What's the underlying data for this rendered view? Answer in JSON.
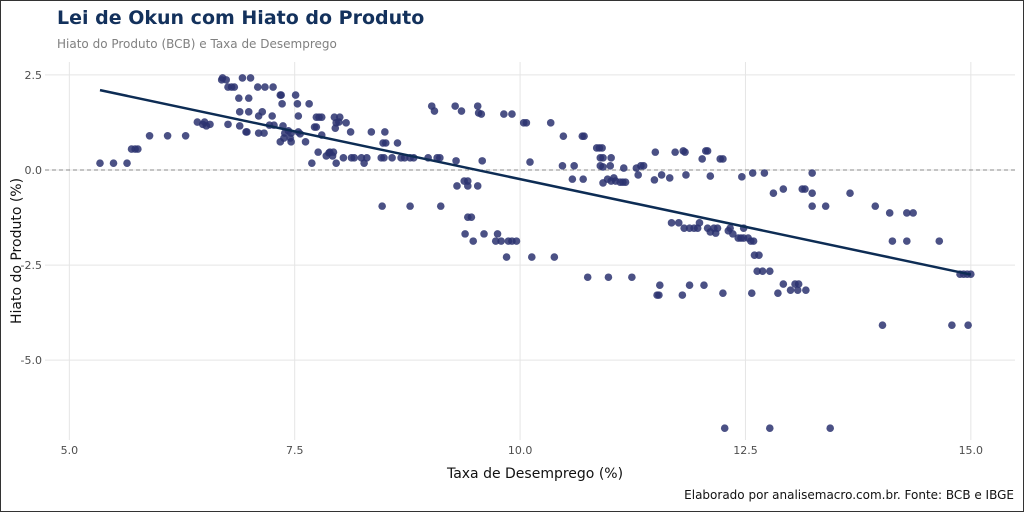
{
  "title": "Lei de Okun com Hiato do Produto",
  "subtitle": "Hiato do Produto (BCB) e Taxa de Desemprego",
  "caption": "Elaborado por analisemacro.com.br. Fonte: BCB e IBGE",
  "colors": {
    "title": "#13315c",
    "points": "#2b3270",
    "trend": "#0d2c54",
    "reference_line": "#888888"
  },
  "chart_data": {
    "type": "scatter",
    "xlabel": "Taxa de Desemprego (%)",
    "ylabel": "Hiato do Produto (%)",
    "xlim": [
      4.73,
      15.49
    ],
    "ylim": [
      -7.1,
      2.84
    ],
    "xticks": [
      {
        "value": 5.0,
        "label": "5.0"
      },
      {
        "value": 7.5,
        "label": "7.5"
      },
      {
        "value": 10.0,
        "label": "10.0"
      },
      {
        "value": 12.5,
        "label": "12.5"
      },
      {
        "value": 15.0,
        "label": "15.0"
      }
    ],
    "yticks": [
      {
        "value": 2.5,
        "label": "2.5"
      },
      {
        "value": 0.0,
        "label": "0.0"
      },
      {
        "value": -2.5,
        "label": "-2.5"
      },
      {
        "value": -5.0,
        "label": "-5.0"
      }
    ],
    "grid": true,
    "reference_hline": 0,
    "trend_line": {
      "x": [
        5.34,
        15.0
      ],
      "y": [
        2.1,
        -2.75
      ]
    },
    "points": [
      [
        5.34,
        0.18
      ],
      [
        5.49,
        0.18
      ],
      [
        5.64,
        0.18
      ],
      [
        5.69,
        0.55
      ],
      [
        5.73,
        0.55
      ],
      [
        5.76,
        0.55
      ],
      [
        5.89,
        0.9
      ],
      [
        6.09,
        0.9
      ],
      [
        6.29,
        0.9
      ],
      [
        6.42,
        1.26
      ],
      [
        6.48,
        1.2
      ],
      [
        6.5,
        1.26
      ],
      [
        6.52,
        1.16
      ],
      [
        6.56,
        1.2
      ],
      [
        6.69,
        2.37
      ],
      [
        6.7,
        2.42
      ],
      [
        6.74,
        2.37
      ],
      [
        6.76,
        2.18
      ],
      [
        6.8,
        2.18
      ],
      [
        6.83,
        2.18
      ],
      [
        6.76,
        1.2
      ],
      [
        6.88,
        1.89
      ],
      [
        6.89,
        1.53
      ],
      [
        6.89,
        1.16
      ],
      [
        6.92,
        2.42
      ],
      [
        7.01,
        2.42
      ],
      [
        6.96,
        1.0
      ],
      [
        6.97,
        1.0
      ],
      [
        6.99,
        1.89
      ],
      [
        6.99,
        1.53
      ],
      [
        7.1,
        0.97
      ],
      [
        7.16,
        0.97
      ],
      [
        7.09,
        2.18
      ],
      [
        7.17,
        2.18
      ],
      [
        7.26,
        2.18
      ],
      [
        7.1,
        1.42
      ],
      [
        7.14,
        1.53
      ],
      [
        7.22,
        1.18
      ],
      [
        7.27,
        1.18
      ],
      [
        7.25,
        1.42
      ],
      [
        7.34,
        1.97
      ],
      [
        7.35,
        1.97
      ],
      [
        7.36,
        1.74
      ],
      [
        7.34,
        0.74
      ],
      [
        7.37,
        1.16
      ],
      [
        7.39,
        0.97
      ],
      [
        7.43,
        1.03
      ],
      [
        7.46,
        0.97
      ],
      [
        7.38,
        0.84
      ],
      [
        7.45,
        0.84
      ],
      [
        7.46,
        0.74
      ],
      [
        7.51,
        1.97
      ],
      [
        7.53,
        1.74
      ],
      [
        7.54,
        1.0
      ],
      [
        7.56,
        0.95
      ],
      [
        7.54,
        1.42
      ],
      [
        7.62,
        0.74
      ],
      [
        7.66,
        1.74
      ],
      [
        7.69,
        0.18
      ],
      [
        7.72,
        1.13
      ],
      [
        7.74,
        1.13
      ],
      [
        7.74,
        1.39
      ],
      [
        7.77,
        1.39
      ],
      [
        7.8,
        1.39
      ],
      [
        7.76,
        0.47
      ],
      [
        7.8,
        0.92
      ],
      [
        7.85,
        0.37
      ],
      [
        7.88,
        0.45
      ],
      [
        7.92,
        0.37
      ],
      [
        7.94,
        1.39
      ],
      [
        7.96,
        1.24
      ],
      [
        8.0,
        1.39
      ],
      [
        7.95,
        1.1
      ],
      [
        7.99,
        1.26
      ],
      [
        7.96,
        0.18
      ],
      [
        7.89,
        0.47
      ],
      [
        7.93,
        0.47
      ],
      [
        8.04,
        0.32
      ],
      [
        8.07,
        1.24
      ],
      [
        8.12,
        1.0
      ],
      [
        8.13,
        0.32
      ],
      [
        8.16,
        0.32
      ],
      [
        8.24,
        0.32
      ],
      [
        8.27,
        0.18
      ],
      [
        8.3,
        0.32
      ],
      [
        8.35,
        1.0
      ],
      [
        8.47,
        -0.95
      ],
      [
        8.46,
        0.32
      ],
      [
        8.49,
        0.32
      ],
      [
        8.5,
        1.0
      ],
      [
        8.48,
        0.71
      ],
      [
        8.51,
        0.71
      ],
      [
        8.58,
        0.32
      ],
      [
        8.64,
        0.71
      ],
      [
        8.68,
        0.32
      ],
      [
        8.72,
        0.32
      ],
      [
        8.78,
        0.32
      ],
      [
        8.82,
        0.32
      ],
      [
        8.78,
        -0.95
      ],
      [
        8.98,
        0.32
      ],
      [
        9.02,
        1.68
      ],
      [
        9.05,
        1.55
      ],
      [
        9.08,
        0.32
      ],
      [
        9.11,
        0.32
      ],
      [
        9.12,
        -0.95
      ],
      [
        9.28,
        1.68
      ],
      [
        9.29,
        0.24
      ],
      [
        9.3,
        -0.42
      ],
      [
        9.35,
        1.55
      ],
      [
        9.38,
        -0.29
      ],
      [
        9.42,
        -0.29
      ],
      [
        9.39,
        -1.68
      ],
      [
        9.42,
        -0.42
      ],
      [
        9.42,
        -1.24
      ],
      [
        9.46,
        -1.24
      ],
      [
        9.48,
        -1.87
      ],
      [
        9.53,
        -0.42
      ],
      [
        9.53,
        1.68
      ],
      [
        9.54,
        1.5
      ],
      [
        9.58,
        0.24
      ],
      [
        9.57,
        1.47
      ],
      [
        9.6,
        -1.68
      ],
      [
        9.75,
        -1.68
      ],
      [
        9.73,
        -1.87
      ],
      [
        9.79,
        -1.87
      ],
      [
        9.82,
        1.47
      ],
      [
        9.85,
        -2.29
      ],
      [
        9.87,
        -1.87
      ],
      [
        9.91,
        -1.87
      ],
      [
        9.96,
        -1.87
      ],
      [
        9.91,
        1.47
      ],
      [
        10.04,
        1.24
      ],
      [
        10.07,
        1.24
      ],
      [
        10.11,
        0.21
      ],
      [
        10.13,
        -2.29
      ],
      [
        10.34,
        1.24
      ],
      [
        10.38,
        -2.29
      ],
      [
        10.47,
        0.11
      ],
      [
        10.48,
        0.89
      ],
      [
        10.58,
        -0.24
      ],
      [
        10.6,
        0.11
      ],
      [
        10.69,
        0.89
      ],
      [
        10.71,
        0.89
      ],
      [
        10.7,
        -0.24
      ],
      [
        10.75,
        -2.82
      ],
      [
        10.85,
        0.58
      ],
      [
        10.88,
        0.58
      ],
      [
        10.91,
        0.58
      ],
      [
        10.89,
        0.32
      ],
      [
        10.92,
        0.32
      ],
      [
        10.89,
        0.11
      ],
      [
        10.92,
        0.08
      ],
      [
        10.92,
        -0.34
      ],
      [
        10.97,
        -0.24
      ],
      [
        11.01,
        -0.29
      ],
      [
        11.04,
        -0.21
      ],
      [
        11.06,
        -0.29
      ],
      [
        10.98,
        -2.82
      ],
      [
        11.01,
        0.32
      ],
      [
        11.0,
        0.11
      ],
      [
        11.11,
        -0.32
      ],
      [
        11.14,
        -0.32
      ],
      [
        11.17,
        -0.32
      ],
      [
        11.15,
        0.05
      ],
      [
        11.24,
        -2.82
      ],
      [
        11.29,
        0.05
      ],
      [
        11.31,
        -0.13
      ],
      [
        11.34,
        0.11
      ],
      [
        11.37,
        0.11
      ],
      [
        11.49,
        -0.26
      ],
      [
        11.5,
        0.47
      ],
      [
        11.52,
        -3.29
      ],
      [
        11.54,
        -3.29
      ],
      [
        11.55,
        -3.03
      ],
      [
        11.57,
        -0.13
      ],
      [
        11.66,
        -0.21
      ],
      [
        11.68,
        -1.39
      ],
      [
        11.72,
        0.47
      ],
      [
        11.76,
        -1.39
      ],
      [
        11.8,
        -3.29
      ],
      [
        11.81,
        0.5
      ],
      [
        11.83,
        0.47
      ],
      [
        11.82,
        -1.53
      ],
      [
        11.84,
        -0.13
      ],
      [
        11.88,
        -3.03
      ],
      [
        11.88,
        -1.53
      ],
      [
        11.93,
        -1.53
      ],
      [
        11.97,
        -1.53
      ],
      [
        11.99,
        -1.39
      ],
      [
        12.02,
        0.29
      ],
      [
        12.04,
        -3.03
      ],
      [
        12.06,
        0.5
      ],
      [
        12.08,
        0.5
      ],
      [
        12.08,
        -1.53
      ],
      [
        12.11,
        -1.63
      ],
      [
        12.15,
        -1.53
      ],
      [
        12.17,
        -1.66
      ],
      [
        12.19,
        -1.53
      ],
      [
        12.11,
        -0.16
      ],
      [
        12.22,
        0.29
      ],
      [
        12.25,
        0.29
      ],
      [
        12.25,
        -3.24
      ],
      [
        12.27,
        -6.79
      ],
      [
        12.31,
        -1.6
      ],
      [
        12.33,
        -1.53
      ],
      [
        12.36,
        -1.68
      ],
      [
        12.42,
        -1.79
      ],
      [
        12.45,
        -1.79
      ],
      [
        12.48,
        -1.79
      ],
      [
        12.53,
        -1.79
      ],
      [
        12.56,
        -1.87
      ],
      [
        12.59,
        -1.87
      ],
      [
        12.46,
        -0.18
      ],
      [
        12.48,
        -1.53
      ],
      [
        12.58,
        -0.08
      ],
      [
        12.57,
        -3.24
      ],
      [
        12.6,
        -2.24
      ],
      [
        12.65,
        -2.24
      ],
      [
        12.63,
        -2.66
      ],
      [
        12.71,
        -0.08
      ],
      [
        12.69,
        -2.66
      ],
      [
        12.77,
        -6.79
      ],
      [
        12.77,
        -2.66
      ],
      [
        12.81,
        -0.61
      ],
      [
        12.86,
        -3.24
      ],
      [
        12.92,
        -0.5
      ],
      [
        12.92,
        -3.0
      ],
      [
        13.0,
        -3.16
      ],
      [
        13.05,
        -3.0
      ],
      [
        13.09,
        -3.0
      ],
      [
        13.08,
        -3.16
      ],
      [
        13.13,
        -0.5
      ],
      [
        13.16,
        -0.5
      ],
      [
        13.17,
        -3.16
      ],
      [
        13.24,
        -0.61
      ],
      [
        13.24,
        -0.08
      ],
      [
        13.24,
        -0.95
      ],
      [
        13.39,
        -0.95
      ],
      [
        13.44,
        -6.79
      ],
      [
        13.66,
        -0.61
      ],
      [
        13.94,
        -0.95
      ],
      [
        14.02,
        -4.08
      ],
      [
        14.1,
        -1.13
      ],
      [
        14.13,
        -1.87
      ],
      [
        14.29,
        -1.13
      ],
      [
        14.36,
        -1.13
      ],
      [
        14.29,
        -1.87
      ],
      [
        14.65,
        -1.87
      ],
      [
        14.79,
        -4.08
      ],
      [
        14.88,
        -2.74
      ],
      [
        14.92,
        -2.74
      ],
      [
        14.96,
        -2.74
      ],
      [
        15.0,
        -2.74
      ],
      [
        14.97,
        -4.08
      ]
    ]
  }
}
